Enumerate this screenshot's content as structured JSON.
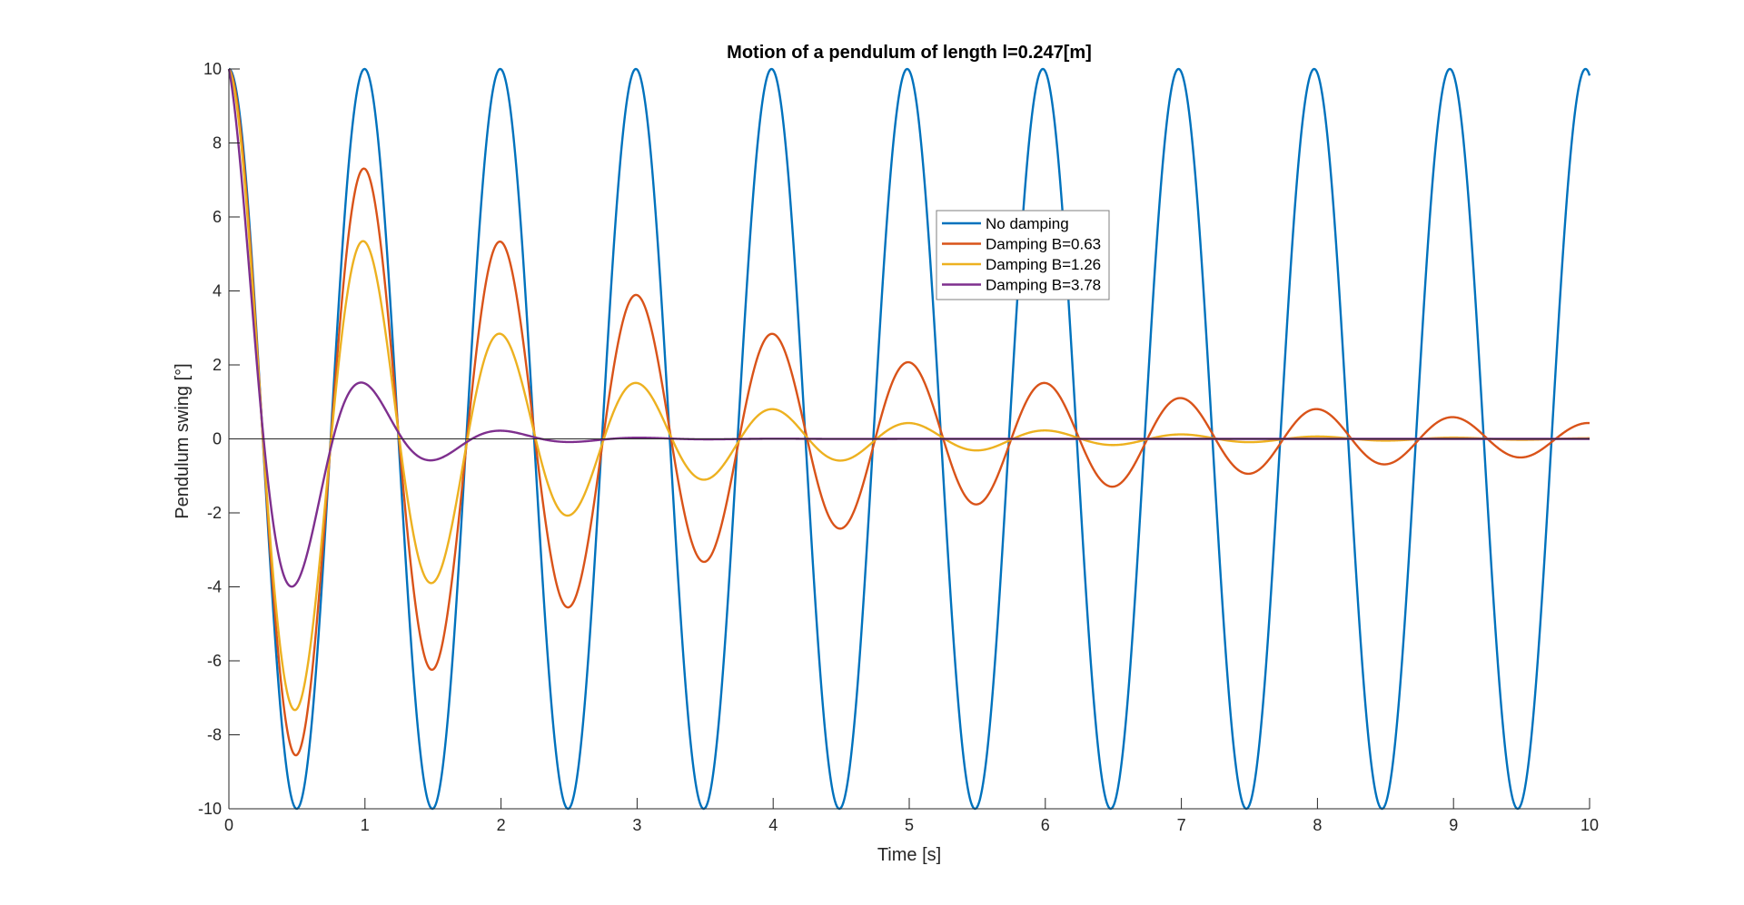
{
  "chart_data": {
    "type": "line",
    "title": "Motion of a pendulum of length l=0.247[m]",
    "xlabel": "Time [s]",
    "ylabel": "Pendulum swing [°]",
    "xlim": [
      0,
      10
    ],
    "ylim": [
      -10,
      10
    ],
    "xticks": [
      0,
      1,
      2,
      3,
      4,
      5,
      6,
      7,
      8,
      9,
      10
    ],
    "yticks": [
      -10,
      -8,
      -6,
      -4,
      -2,
      0,
      2,
      4,
      6,
      8,
      10
    ],
    "xtick_labels": [
      "0",
      "1",
      "2",
      "3",
      "4",
      "5",
      "6",
      "7",
      "8",
      "9",
      "10"
    ],
    "ytick_labels": [
      "-10",
      "-8",
      "-6",
      "-4",
      "-2",
      "0",
      "2",
      "4",
      "6",
      "8",
      "10"
    ],
    "grid": false,
    "zero_line": true,
    "legend_position": "upper center",
    "x_sampled": [
      0,
      0.5,
      1,
      1.5,
      2,
      2.5,
      3,
      3.5,
      4,
      4.5,
      5,
      5.5,
      6,
      6.5,
      7,
      7.5,
      8,
      8.5,
      9,
      9.5,
      10
    ],
    "series": [
      {
        "name": "No damping",
        "color": "#0072BD",
        "values": [
          10,
          -10,
          10,
          -10,
          10,
          -10,
          10,
          -10,
          10,
          -10,
          10,
          -10,
          10,
          -10,
          10,
          -10,
          10,
          -10,
          10,
          -10,
          10
        ],
        "model": {
          "amplitude": 10,
          "frequency_hz": 1.003,
          "damping_rate": 0
        }
      },
      {
        "name": "Damping B=0.63",
        "color": "#D95319",
        "values": [
          10,
          -8.5,
          7.3,
          -6.2,
          5.3,
          -4.5,
          3.9,
          -3.3,
          2.8,
          -2.4,
          2.1,
          -1.8,
          1.5,
          -1.3,
          1.1,
          -0.95,
          0.8,
          -0.7,
          0.6,
          -0.5,
          0.44
        ],
        "model": {
          "amplitude": 10,
          "frequency_hz": 1.0,
          "damping_rate": 0.315
        }
      },
      {
        "name": "Damping B=1.26",
        "color": "#EDB120",
        "values": [
          10,
          -7.3,
          5.3,
          -3.85,
          2.8,
          -2.05,
          1.5,
          -1.1,
          0.8,
          -0.58,
          0.42,
          -0.31,
          0.22,
          -0.16,
          0.12,
          -0.09,
          0.06,
          -0.05,
          0.03,
          -0.02,
          0.02
        ],
        "model": {
          "amplitude": 10,
          "frequency_hz": 0.998,
          "damping_rate": 0.63
        }
      },
      {
        "name": "Damping B=3.78",
        "color": "#7E2F8E",
        "values": [
          10,
          -3.7,
          1.35,
          -0.5,
          0.18,
          -0.07,
          0.02,
          -0.01,
          0,
          0,
          0,
          0,
          0,
          0,
          0,
          0,
          0,
          0,
          0,
          0,
          0
        ],
        "model": {
          "amplitude": 10,
          "frequency_hz": 0.98,
          "damping_rate": 1.89
        }
      }
    ]
  }
}
